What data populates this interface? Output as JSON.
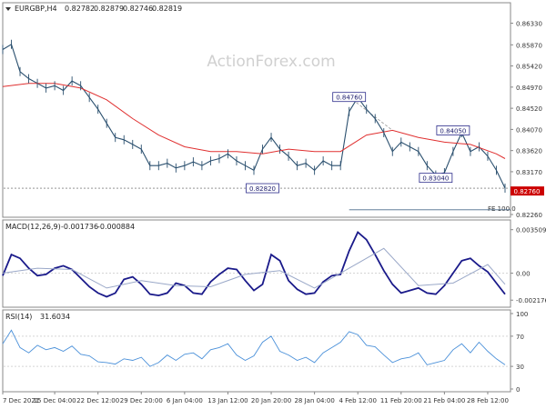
{
  "chart_data": [
    {
      "type": "line",
      "panel": "price",
      "header": {
        "symbol": "EURGBP,H4",
        "ohlc": [
          "0.82782",
          "0.82879",
          "0.82746",
          "0.82819"
        ]
      },
      "watermark": "ActionForex.com",
      "ylim": [
        0.8226,
        0.8663
      ],
      "y_ticks": [
        "0.86330",
        "0.85870",
        "0.85420",
        "0.84970",
        "0.84520",
        "0.84070",
        "0.83620",
        "0.83170",
        "0.82260"
      ],
      "current_price": {
        "value": 0.8276,
        "label": "0.82760",
        "color": "#cc0000"
      },
      "annotations": [
        {
          "label": "0.84760",
          "price": 0.8476,
          "x": 40
        },
        {
          "label": "0.82820",
          "price": 0.8282,
          "x": 30
        },
        {
          "label": "0.84050",
          "price": 0.8405,
          "x": 52
        },
        {
          "label": "0.83040",
          "price": 0.8304,
          "x": 50
        }
      ],
      "fe_label": "FE 100.0",
      "fe_level": 0.8236,
      "series": [
        {
          "kind": "price",
          "color": "#2a4f6e",
          "x": [
            0,
            1,
            2,
            3,
            4,
            5,
            6,
            7,
            8,
            9,
            10,
            11,
            12,
            13,
            14,
            15,
            16,
            17,
            18,
            19,
            20,
            21,
            22,
            23,
            24,
            25,
            26,
            27,
            28,
            29,
            30,
            31,
            32,
            33,
            34,
            35,
            36,
            37,
            38,
            39,
            40,
            41,
            42,
            43,
            44,
            45,
            46,
            47,
            48,
            49,
            50,
            51,
            52,
            53,
            54,
            55,
            56,
            57,
            58
          ],
          "y": [
            0.8577,
            0.8588,
            0.853,
            0.8515,
            0.8505,
            0.8495,
            0.85,
            0.849,
            0.851,
            0.85,
            0.8475,
            0.845,
            0.842,
            0.839,
            0.8385,
            0.8375,
            0.8365,
            0.833,
            0.833,
            0.8335,
            0.8325,
            0.833,
            0.8338,
            0.833,
            0.834,
            0.8345,
            0.8355,
            0.834,
            0.833,
            0.832,
            0.8365,
            0.839,
            0.8365,
            0.835,
            0.833,
            0.8335,
            0.832,
            0.834,
            0.833,
            0.833,
            0.8445,
            0.8475,
            0.845,
            0.843,
            0.84,
            0.836,
            0.838,
            0.837,
            0.836,
            0.833,
            0.831,
            0.8315,
            0.836,
            0.84,
            0.836,
            0.837,
            0.835,
            0.832,
            0.8282
          ]
        },
        {
          "kind": "moving-average",
          "color": "#e03030",
          "x": [
            0,
            3,
            6,
            9,
            12,
            15,
            18,
            21,
            24,
            27,
            30,
            33,
            36,
            39,
            42,
            45,
            48,
            51,
            54,
            57,
            58
          ],
          "y": [
            0.8498,
            0.8505,
            0.8505,
            0.8495,
            0.847,
            0.843,
            0.8395,
            0.837,
            0.836,
            0.836,
            0.8355,
            0.8365,
            0.836,
            0.836,
            0.8395,
            0.8405,
            0.839,
            0.838,
            0.8375,
            0.8355,
            0.8345
          ]
        }
      ]
    },
    {
      "type": "line",
      "panel": "macd",
      "header": {
        "label": "MACD(12,26,9)",
        "values": [
          "-0.001736",
          "-0.000884"
        ]
      },
      "ylim": [
        -0.0026,
        0.004
      ],
      "y_ticks": [
        "0.003509",
        "0.00",
        "-0.002176"
      ],
      "zero_label": "0.00",
      "series": [
        {
          "kind": "macd",
          "color": "#1a1a8a",
          "x": [
            0,
            1,
            2,
            3,
            4,
            5,
            6,
            7,
            8,
            9,
            10,
            11,
            12,
            13,
            14,
            15,
            16,
            17,
            18,
            19,
            20,
            21,
            22,
            23,
            24,
            25,
            26,
            27,
            28,
            29,
            30,
            31,
            32,
            33,
            34,
            35,
            36,
            37,
            38,
            39,
            40,
            41,
            42,
            43,
            44,
            45,
            46,
            47,
            48,
            49,
            50,
            51,
            52,
            53,
            54,
            55,
            56,
            57,
            58
          ],
          "y": [
            -0.0002,
            0.0015,
            0.0012,
            0.0004,
            -0.0002,
            -0.0001,
            0.0004,
            0.0006,
            0.0003,
            -0.0004,
            -0.0011,
            -0.0016,
            -0.0019,
            -0.0016,
            -0.0005,
            -0.0003,
            -0.0009,
            -0.0017,
            -0.0018,
            -0.0016,
            -0.0008,
            -0.001,
            -0.0016,
            -0.0017,
            -0.0007,
            -0.0001,
            0.0004,
            0.0003,
            -0.0006,
            -0.0014,
            -0.0009,
            0.0015,
            0.001,
            -0.0006,
            -0.0013,
            -0.0017,
            -0.0016,
            -0.0007,
            -0.0002,
            -0.0001,
            0.0018,
            0.0033,
            0.0027,
            0.0015,
            0.0002,
            -0.0009,
            -0.0016,
            -0.0014,
            -0.0012,
            -0.0016,
            -0.0017,
            -0.001,
            0.0,
            0.001,
            0.0012,
            0.0006,
            0.0001,
            -0.0008,
            -0.0017
          ]
        },
        {
          "kind": "signal",
          "color": "#9aa8c8",
          "x": [
            0,
            4,
            8,
            12,
            16,
            20,
            24,
            28,
            32,
            36,
            40,
            44,
            48,
            52,
            56,
            58
          ],
          "y": [
            0.0,
            0.0004,
            0.0003,
            -0.0012,
            -0.0006,
            -0.001,
            -0.0011,
            -0.0001,
            0.0002,
            -0.0012,
            0.0004,
            0.002,
            -0.001,
            -0.0008,
            0.0007,
            -0.0009
          ]
        }
      ]
    },
    {
      "type": "line",
      "panel": "rsi",
      "header": {
        "label": "RSI(14)",
        "value": "31.6034"
      },
      "ylim": [
        0,
        100
      ],
      "y_ticks": [
        "100",
        "70",
        "30",
        "0"
      ],
      "levels": [
        70,
        30
      ],
      "series": [
        {
          "kind": "rsi",
          "color": "#4a90d9",
          "x": [
            0,
            1,
            2,
            3,
            4,
            5,
            6,
            7,
            8,
            9,
            10,
            11,
            12,
            13,
            14,
            15,
            16,
            17,
            18,
            19,
            20,
            21,
            22,
            23,
            24,
            25,
            26,
            27,
            28,
            29,
            30,
            31,
            32,
            33,
            34,
            35,
            36,
            37,
            38,
            39,
            40,
            41,
            42,
            43,
            44,
            45,
            46,
            47,
            48,
            49,
            50,
            51,
            52,
            53,
            54,
            55,
            56,
            57,
            58
          ],
          "y": [
            60,
            78,
            55,
            48,
            58,
            52,
            55,
            50,
            57,
            46,
            44,
            36,
            35,
            33,
            40,
            38,
            42,
            30,
            35,
            45,
            38,
            46,
            48,
            40,
            52,
            55,
            60,
            45,
            38,
            44,
            62,
            70,
            50,
            45,
            38,
            42,
            35,
            48,
            55,
            62,
            76,
            72,
            58,
            56,
            45,
            35,
            40,
            42,
            48,
            32,
            35,
            38,
            52,
            60,
            48,
            62,
            50,
            40,
            32
          ]
        }
      ]
    }
  ],
  "x_axis": {
    "total": 58,
    "labels": [
      {
        "text": "7 Dec 2021",
        "x": 0
      },
      {
        "text": "15 Dec 04:00",
        "x": 6
      },
      {
        "text": "22 Dec 12:00",
        "x": 11
      },
      {
        "text": "29 Dec 20:00",
        "x": 16
      },
      {
        "text": "6 Jan 04:00",
        "x": 21
      },
      {
        "text": "13 Jan 12:00",
        "x": 26
      },
      {
        "text": "20 Jan 20:00",
        "x": 31
      },
      {
        "text": "28 Jan 04:00",
        "x": 36
      },
      {
        "text": "4 Feb 12:00",
        "x": 41
      },
      {
        "text": "11 Feb 20:00",
        "x": 46
      },
      {
        "text": "21 Feb 04:00",
        "x": 51
      },
      {
        "text": "28 Feb 12:00",
        "x": 56
      }
    ]
  }
}
